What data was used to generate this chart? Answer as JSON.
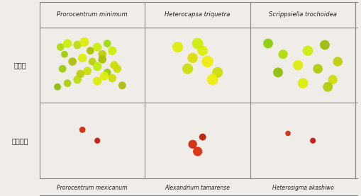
{
  "col_headers": [
    "Prorocentrum minimum",
    "Heterocapsa triquetra",
    "Scrippsiella trochoidea"
  ],
  "row_labels": [
    "종특이성",
    "근연종"
  ],
  "bottom_labels": [
    "Prorocentrum mexicanum",
    "Alexandrium tamarense",
    "Heterosigma akashiwo"
  ],
  "bg_color": "#f0ede8",
  "cell_bg": "#d8d4cc",
  "image_bg": "#000000",
  "border_color": "#888888",
  "text_color": "#222222",
  "fig_width": 5.09,
  "fig_height": 2.77,
  "dpi": 100,
  "row1_dots": {
    "col0": {
      "x": [
        0.18,
        0.25,
        0.22,
        0.35,
        0.42,
        0.48,
        0.55,
        0.6,
        0.65,
        0.7,
        0.3,
        0.4,
        0.5,
        0.6,
        0.2,
        0.45,
        0.55,
        0.65,
        0.75,
        0.35,
        0.25,
        0.55,
        0.7,
        0.8,
        0.15,
        0.38,
        0.62,
        0.72
      ],
      "y": [
        0.75,
        0.8,
        0.65,
        0.78,
        0.82,
        0.7,
        0.75,
        0.65,
        0.8,
        0.7,
        0.55,
        0.6,
        0.55,
        0.58,
        0.45,
        0.42,
        0.48,
        0.4,
        0.45,
        0.3,
        0.25,
        0.28,
        0.32,
        0.22,
        0.2,
        0.38,
        0.35,
        0.5
      ],
      "sizes": [
        60,
        80,
        50,
        70,
        90,
        60,
        80,
        70,
        60,
        80,
        70,
        80,
        60,
        70,
        60,
        70,
        80,
        60,
        70,
        70,
        60,
        80,
        70,
        60,
        50,
        70,
        80,
        70
      ],
      "colors": [
        "#aadd00",
        "#ccee00",
        "#99cc00",
        "#bbdd00",
        "#ddee00",
        "#aabb00",
        "#ccee00",
        "#bbcc00",
        "#99dd00",
        "#ccee00",
        "#aabb00",
        "#ddee00",
        "#bbcc00",
        "#aabb00",
        "#99cc00",
        "#ccdd00",
        "#bbee00",
        "#99cc00",
        "#ccdd00",
        "#bbdd00",
        "#aacc00",
        "#ddee00",
        "#ccdd00",
        "#aabb00",
        "#88bb00",
        "#bbcc00",
        "#ddee00",
        "#ccdd00"
      ]
    },
    "col1": {
      "x": [
        0.3,
        0.5,
        0.45,
        0.6,
        0.7,
        0.55,
        0.65,
        0.4
      ],
      "y": [
        0.75,
        0.8,
        0.6,
        0.55,
        0.4,
        0.7,
        0.3,
        0.45
      ],
      "sizes": [
        120,
        130,
        110,
        140,
        120,
        110,
        130,
        120
      ],
      "colors": [
        "#ddee00",
        "#ccee00",
        "#dddd00",
        "#eeee00",
        "#ccdd00",
        "#ddee00",
        "#eeee00",
        "#ccdd00"
      ]
    },
    "col2": {
      "x": [
        0.15,
        0.3,
        0.55,
        0.72,
        0.85,
        0.45,
        0.65,
        0.8,
        0.25,
        0.5,
        0.75
      ],
      "y": [
        0.8,
        0.65,
        0.7,
        0.78,
        0.55,
        0.5,
        0.45,
        0.3,
        0.4,
        0.25,
        0.2
      ],
      "sizes": [
        100,
        90,
        110,
        100,
        95,
        105,
        95,
        90,
        100,
        110,
        100
      ],
      "colors": [
        "#88cc00",
        "#aadd00",
        "#ccee00",
        "#99bb00",
        "#bbcc00",
        "#ddee00",
        "#aacc00",
        "#ccdd00",
        "#88bb00",
        "#ddee00",
        "#aacc00"
      ]
    }
  },
  "row2_dots": {
    "col0": {
      "x": [
        0.4,
        0.55
      ],
      "y": [
        0.65,
        0.5
      ],
      "sizes": [
        40,
        35
      ],
      "colors": [
        "#cc2200",
        "#bb1100"
      ]
    },
    "col1": {
      "x": [
        0.45,
        0.5,
        0.55
      ],
      "y": [
        0.45,
        0.35,
        0.55
      ],
      "sizes": [
        80,
        90,
        50
      ],
      "colors": [
        "#cc2200",
        "#dd2200",
        "#bb1100"
      ]
    },
    "col2": {
      "x": [
        0.35,
        0.6
      ],
      "y": [
        0.6,
        0.5
      ],
      "sizes": [
        30,
        35
      ],
      "colors": [
        "#cc2200",
        "#bb1100"
      ]
    }
  }
}
